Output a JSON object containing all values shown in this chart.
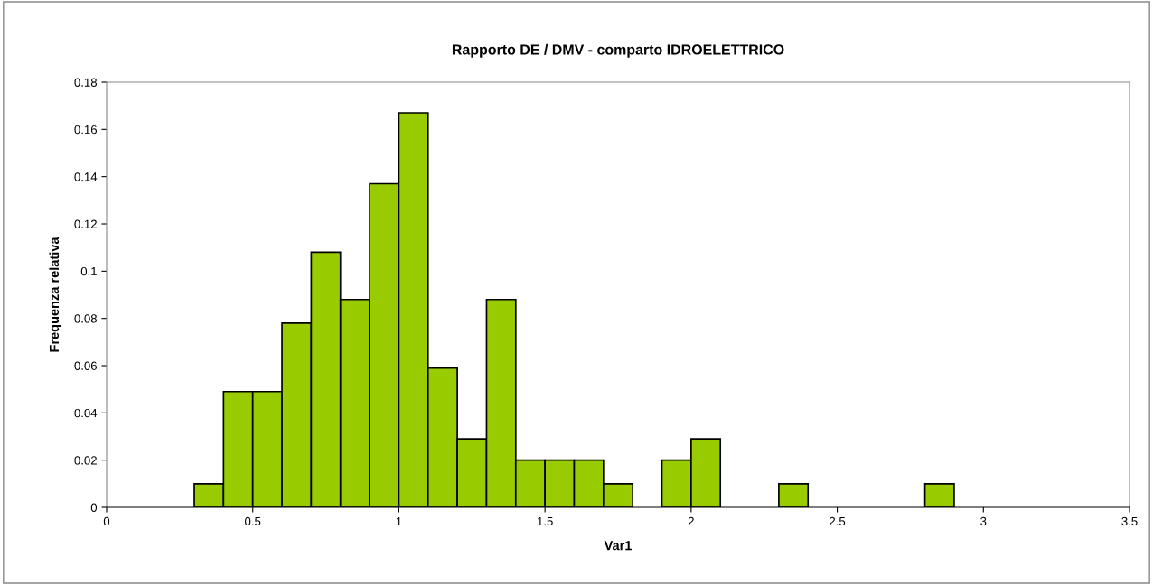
{
  "chart_data": {
    "type": "histogram",
    "title": "Rapporto DE / DMV - comparto IDROELETTRICO",
    "xlabel": "Var1",
    "ylabel": "Frequenza relativa",
    "bins": [
      0.3,
      0.4,
      0.5,
      0.6,
      0.7,
      0.8,
      0.9,
      1.0,
      1.1,
      1.2,
      1.3,
      1.4,
      1.5,
      1.6,
      1.7,
      1.8,
      1.9,
      2.0,
      2.1,
      2.2,
      2.3,
      2.4,
      2.5,
      2.6,
      2.7,
      2.8,
      2.9
    ],
    "values": [
      0.01,
      0.049,
      0.049,
      0.078,
      0.108,
      0.088,
      0.137,
      0.167,
      0.059,
      0.029,
      0.088,
      0.02,
      0.02,
      0.02,
      0.01,
      0,
      0.02,
      0.029,
      0,
      0,
      0.01,
      0,
      0,
      0,
      0,
      0.01
    ],
    "color": "#99cc00",
    "xlim": [
      0,
      3.5
    ],
    "xticks": [
      0,
      0.5,
      1,
      1.5,
      2,
      2.5,
      3,
      3.5
    ],
    "ylim": [
      0,
      0.18
    ],
    "yticks": [
      0,
      0.02,
      0.04,
      0.06,
      0.08,
      0.1,
      0.12,
      0.14,
      0.16,
      0.18
    ],
    "grid": false,
    "legend": false
  }
}
